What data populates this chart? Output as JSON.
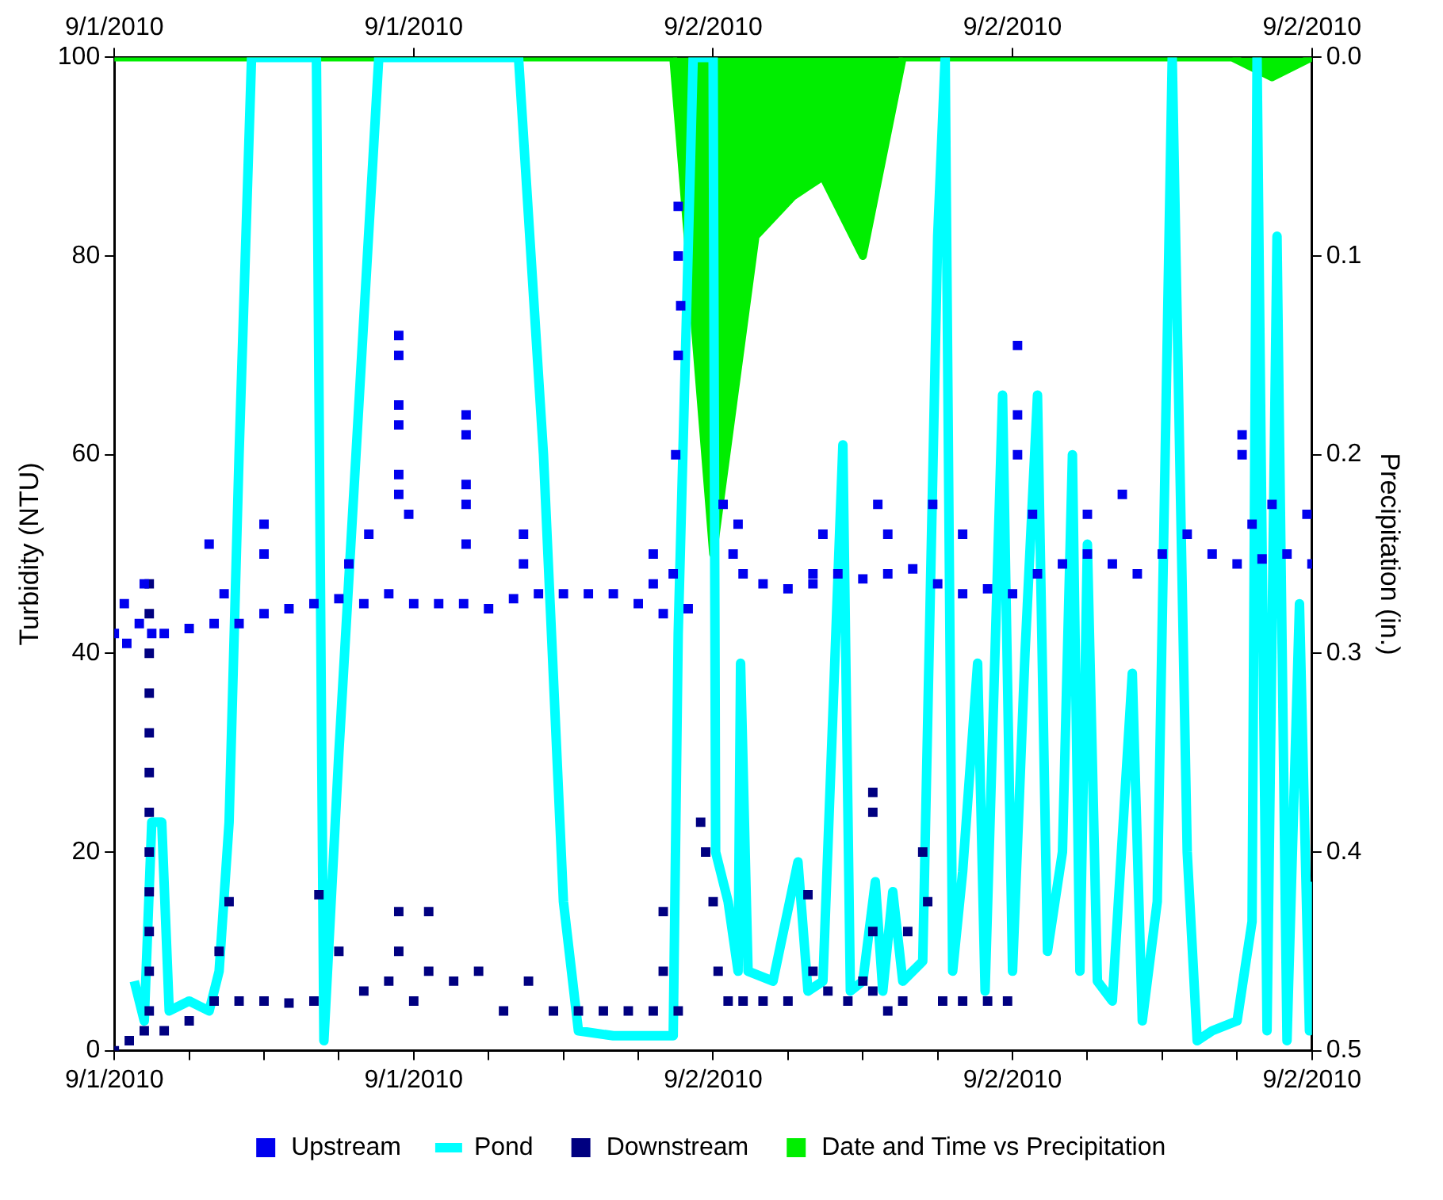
{
  "chart_data": {
    "type": "line",
    "ylabel": "Turbidity (NTU)",
    "y2label": "Precipitation (in.)",
    "legend": "bottom",
    "xlim": [
      "2010-09-01T12:00",
      "2010-09-02T12:00"
    ],
    "xticks": [
      {
        "value": "2010-09-01T12:00",
        "label": "9/1/2010"
      },
      {
        "value": "2010-09-01T13:30",
        "label": null
      },
      {
        "value": "2010-09-01T15:00",
        "label": null
      },
      {
        "value": "2010-09-01T16:30",
        "label": null
      },
      {
        "value": "2010-09-01T18:00",
        "label": "9/1/2010"
      },
      {
        "value": "2010-09-01T19:30",
        "label": null
      },
      {
        "value": "2010-09-01T21:00",
        "label": null
      },
      {
        "value": "2010-09-01T22:30",
        "label": null
      },
      {
        "value": "2010-09-02T00:00",
        "label": "9/2/2010"
      },
      {
        "value": "2010-09-02T01:30",
        "label": null
      },
      {
        "value": "2010-09-02T03:00",
        "label": null
      },
      {
        "value": "2010-09-02T04:30",
        "label": null
      },
      {
        "value": "2010-09-02T06:00",
        "label": "9/2/2010"
      },
      {
        "value": "2010-09-02T07:30",
        "label": null
      },
      {
        "value": "2010-09-02T09:00",
        "label": null
      },
      {
        "value": "2010-09-02T10:30",
        "label": null
      },
      {
        "value": "2010-09-02T12:00",
        "label": "9/2/2010"
      }
    ],
    "x2lim": [
      "2010-09-01T12:00",
      "2010-09-02T12:00"
    ],
    "x2ticks": [
      {
        "value": "2010-09-01T12:00",
        "label": "9/1/2010"
      },
      {
        "value": "2010-09-01T18:00",
        "label": "9/1/2010"
      },
      {
        "value": "2010-09-02T00:00",
        "label": "9/2/2010"
      },
      {
        "value": "2010-09-02T06:00",
        "label": "9/2/2010"
      },
      {
        "value": "2010-09-02T12:00",
        "label": "9/2/2010"
      }
    ],
    "ylim": [
      0,
      100
    ],
    "yticks": [
      0,
      20,
      40,
      60,
      80,
      100
    ],
    "y2lim": [
      0.5,
      0
    ],
    "y2ticks": [
      {
        "value": 0,
        "label": "0.0"
      },
      0.1,
      0.2,
      0.3,
      0.4,
      0.5
    ],
    "series": [
      {
        "name": "Upstream",
        "type": "scatter",
        "marker": "square",
        "color": "#0000ee",
        "x": [
          "2010-09-01T12:00",
          "2010-09-01T12:15",
          "2010-09-01T12:30",
          "2010-09-01T12:45",
          "2010-09-01T13:00",
          "2010-09-01T13:30",
          "2010-09-01T14:00",
          "2010-09-01T14:30",
          "2010-09-01T15:00",
          "2010-09-01T15:30",
          "2010-09-01T16:00",
          "2010-09-01T16:30",
          "2010-09-01T17:00",
          "2010-09-01T17:30",
          "2010-09-01T18:00",
          "2010-09-01T18:30",
          "2010-09-01T19:00",
          "2010-09-01T19:30",
          "2010-09-01T20:00",
          "2010-09-01T20:30",
          "2010-09-01T21:00",
          "2010-09-01T21:30",
          "2010-09-01T22:00",
          "2010-09-01T22:30",
          "2010-09-01T23:00",
          "2010-09-01T23:30",
          "2010-09-01T23:12",
          "2010-09-01T23:15",
          "2010-09-01T23:18",
          "2010-09-01T23:18",
          "2010-09-01T23:18",
          "2010-09-02T00:30",
          "2010-09-02T00:12",
          "2010-09-02T00:24",
          "2010-09-02T00:36",
          "2010-09-02T01:00",
          "2010-09-02T01:30",
          "2010-09-02T02:00",
          "2010-09-02T02:30",
          "2010-09-02T03:00",
          "2010-09-02T03:30",
          "2010-09-02T04:00",
          "2010-09-02T04:30",
          "2010-09-02T05:00",
          "2010-09-02T05:30",
          "2010-09-02T06:00",
          "2010-09-02T06:30",
          "2010-09-02T07:00",
          "2010-09-02T07:30",
          "2010-09-02T08:00",
          "2010-09-02T08:30",
          "2010-09-02T09:00",
          "2010-09-02T09:30",
          "2010-09-02T10:00",
          "2010-09-02T10:30",
          "2010-09-02T11:00",
          "2010-09-02T11:30",
          "2010-09-02T12:00",
          "2010-09-01T12:12",
          "2010-09-01T12:36",
          "2010-09-01T13:54",
          "2010-09-01T14:12",
          "2010-09-01T15:00",
          "2010-09-01T15:00",
          "2010-09-01T16:42",
          "2010-09-01T17:06",
          "2010-09-01T17:42",
          "2010-09-01T17:42",
          "2010-09-01T17:42",
          "2010-09-01T17:42",
          "2010-09-01T17:42",
          "2010-09-01T17:42",
          "2010-09-01T17:54",
          "2010-09-01T19:03",
          "2010-09-01T19:03",
          "2010-09-01T19:03",
          "2010-09-01T19:03",
          "2010-09-01T19:03",
          "2010-09-01T20:12",
          "2010-09-01T20:12",
          "2010-09-01T22:48",
          "2010-09-01T22:48",
          "2010-09-01T23:21",
          "2010-09-02T02:00",
          "2010-09-02T02:12",
          "2010-09-02T03:18",
          "2010-09-02T03:30",
          "2010-09-02T04:24",
          "2010-09-02T05:00",
          "2010-09-02T06:06",
          "2010-09-02T06:06",
          "2010-09-02T06:06",
          "2010-09-02T06:24",
          "2010-09-02T07:30",
          "2010-09-02T08:12",
          "2010-09-02T10:36",
          "2010-09-02T10:36",
          "2010-09-02T10:48",
          "2010-09-02T11:54",
          "2010-09-02T11:12"
        ],
        "values": [
          42,
          41,
          43,
          42,
          42,
          42.5,
          43,
          43,
          44,
          44.5,
          45,
          45.5,
          45,
          46,
          45,
          45,
          45,
          44.5,
          45.5,
          46,
          46,
          46,
          46,
          45,
          44,
          44.5,
          48,
          60,
          70,
          80,
          85,
          53,
          55,
          50,
          48,
          47,
          46.5,
          47,
          48,
          47.5,
          48,
          48.5,
          47,
          46,
          46.5,
          46,
          48,
          49,
          50,
          49,
          48,
          50,
          52,
          50,
          49,
          49.5,
          50,
          49,
          45,
          47,
          51,
          46,
          53,
          50,
          49,
          52,
          72,
          70,
          65,
          63,
          58,
          56,
          54,
          64,
          62,
          57,
          55,
          51,
          52,
          49,
          50,
          47,
          75,
          48,
          52,
          55,
          52,
          55,
          52,
          71,
          64,
          60,
          54,
          54,
          56,
          62,
          60,
          53,
          54,
          55
        ]
      },
      {
        "name": "Pond",
        "type": "line",
        "marker": "none",
        "color": "#00ffff",
        "x": [
          "2010-09-01T12:24",
          "2010-09-01T12:36",
          "2010-09-01T12:45",
          "2010-09-01T12:57",
          "2010-09-01T13:06",
          "2010-09-01T13:30",
          "2010-09-01T13:54",
          "2010-09-01T14:06",
          "2010-09-01T14:18",
          "2010-09-01T14:30",
          "2010-09-01T14:45",
          "2010-09-01T16:03",
          "2010-09-01T16:12",
          "2010-09-01T16:30",
          "2010-09-01T17:18",
          "2010-09-01T20:06",
          "2010-09-01T20:36",
          "2010-09-01T21:00",
          "2010-09-01T21:18",
          "2010-09-01T22:00",
          "2010-09-01T23:12",
          "2010-09-01T23:18",
          "2010-09-01T23:36",
          "2010-09-02T00:00",
          "2010-09-02T00:03",
          "2010-09-02T00:18",
          "2010-09-02T00:30",
          "2010-09-02T00:33",
          "2010-09-02T00:42",
          "2010-09-02T01:12",
          "2010-09-02T01:42",
          "2010-09-02T01:54",
          "2010-09-02T02:12",
          "2010-09-02T02:36",
          "2010-09-02T02:45",
          "2010-09-02T03:00",
          "2010-09-02T03:15",
          "2010-09-02T03:24",
          "2010-09-02T03:36",
          "2010-09-02T03:48",
          "2010-09-02T04:12",
          "2010-09-02T04:30",
          "2010-09-02T04:39",
          "2010-09-02T04:48",
          "2010-09-02T05:00",
          "2010-09-02T05:18",
          "2010-09-02T05:27",
          "2010-09-02T05:48",
          "2010-09-02T06:00",
          "2010-09-02T06:15",
          "2010-09-02T06:30",
          "2010-09-02T06:42",
          "2010-09-02T07:00",
          "2010-09-02T07:12",
          "2010-09-02T07:21",
          "2010-09-02T07:30",
          "2010-09-02T07:42",
          "2010-09-02T08:00",
          "2010-09-02T08:24",
          "2010-09-02T08:36",
          "2010-09-02T08:54",
          "2010-09-02T09:12",
          "2010-09-02T09:30",
          "2010-09-02T09:42",
          "2010-09-02T10:00",
          "2010-09-02T10:30",
          "2010-09-02T10:48",
          "2010-09-02T10:54",
          "2010-09-02T11:06",
          "2010-09-02T11:18",
          "2010-09-02T11:30",
          "2010-09-02T11:45",
          "2010-09-02T11:57",
          "2010-09-02T12:00"
        ],
        "values": [
          7,
          3,
          23,
          23,
          4,
          5,
          4,
          8,
          23,
          60,
          100,
          100,
          1,
          30,
          100,
          100,
          60,
          15,
          2,
          1.5,
          1.5,
          42,
          100,
          100,
          20,
          15,
          8,
          39,
          8,
          7,
          19,
          6,
          7,
          61,
          6,
          7,
          17,
          6,
          16,
          7,
          9,
          82,
          100,
          8,
          18,
          39,
          6,
          66,
          8,
          40,
          66,
          10,
          20,
          60,
          8,
          51,
          7,
          5,
          38,
          3,
          15,
          100,
          20,
          1,
          2,
          3,
          13,
          100,
          2,
          82,
          1,
          45,
          2,
          17
        ]
      },
      {
        "name": "Downstream",
        "type": "scatter",
        "marker": "square",
        "color": "#000080",
        "x": [
          "2010-09-01T12:00",
          "2010-09-01T12:18",
          "2010-09-01T12:36",
          "2010-09-01T12:42",
          "2010-09-01T12:42",
          "2010-09-01T12:42",
          "2010-09-01T12:42",
          "2010-09-01T12:42",
          "2010-09-01T12:42",
          "2010-09-01T12:42",
          "2010-09-01T12:42",
          "2010-09-01T12:42",
          "2010-09-01T12:42",
          "2010-09-01T12:42",
          "2010-09-01T12:42",
          "2010-09-01T13:00",
          "2010-09-01T13:30",
          "2010-09-01T14:00",
          "2010-09-01T14:06",
          "2010-09-01T14:18",
          "2010-09-01T14:30",
          "2010-09-01T15:00",
          "2010-09-01T15:30",
          "2010-09-01T16:00",
          "2010-09-01T16:06",
          "2010-09-01T16:30",
          "2010-09-01T17:00",
          "2010-09-01T17:30",
          "2010-09-01T17:42",
          "2010-09-01T17:42",
          "2010-09-01T18:00",
          "2010-09-01T18:18",
          "2010-09-01T18:18",
          "2010-09-01T18:48",
          "2010-09-01T19:18",
          "2010-09-01T19:48",
          "2010-09-01T20:18",
          "2010-09-01T20:48",
          "2010-09-01T21:18",
          "2010-09-01T21:48",
          "2010-09-01T22:18",
          "2010-09-01T22:48",
          "2010-09-01T23:00",
          "2010-09-01T23:00",
          "2010-09-01T23:18",
          "2010-09-01T23:45",
          "2010-09-01T23:51",
          "2010-09-02T00:00",
          "2010-09-02T00:06",
          "2010-09-02T00:18",
          "2010-09-02T00:36",
          "2010-09-02T01:00",
          "2010-09-02T01:30",
          "2010-09-02T01:54",
          "2010-09-02T02:00",
          "2010-09-02T02:18",
          "2010-09-02T02:42",
          "2010-09-02T03:00",
          "2010-09-02T03:12",
          "2010-09-02T03:12",
          "2010-09-02T03:12",
          "2010-09-02T03:12",
          "2010-09-02T03:30",
          "2010-09-02T03:48",
          "2010-09-02T03:54",
          "2010-09-02T04:12",
          "2010-09-02T04:18",
          "2010-09-02T04:36",
          "2010-09-02T05:00",
          "2010-09-02T05:30",
          "2010-09-02T05:54"
        ],
        "values": [
          0,
          1,
          2,
          47,
          44,
          40,
          36,
          32,
          28,
          24,
          20,
          16,
          12,
          8,
          4,
          2,
          3,
          5,
          10,
          15,
          5,
          5,
          4.8,
          5,
          15.7,
          10,
          6,
          7,
          14,
          10,
          5,
          14,
          8,
          7,
          8,
          4,
          7,
          4,
          4,
          4,
          4,
          4,
          14,
          8,
          4,
          23,
          20,
          15,
          8,
          5,
          5,
          5,
          5,
          15.7,
          8,
          6,
          5,
          7,
          26,
          24,
          12,
          6,
          4,
          5,
          12,
          20,
          15,
          5,
          5,
          5,
          5
        ]
      },
      {
        "name": "Date and Time vs Precipitation",
        "type": "area",
        "axis": "y2",
        "color": "#00ee00",
        "x": [
          "2010-09-01T12:00",
          "2010-09-01T23:12",
          "2010-09-02T00:00",
          "2010-09-02T00:51",
          "2010-09-02T01:36",
          "2010-09-02T02:12",
          "2010-09-02T03:00",
          "2010-09-02T03:48",
          "2010-09-02T10:24",
          "2010-09-02T11:12",
          "2010-09-02T12:00"
        ],
        "values": [
          0,
          0,
          0.25,
          0.09,
          0.07,
          0.06,
          0.1,
          0,
          0,
          0.01,
          0
        ]
      }
    ]
  }
}
